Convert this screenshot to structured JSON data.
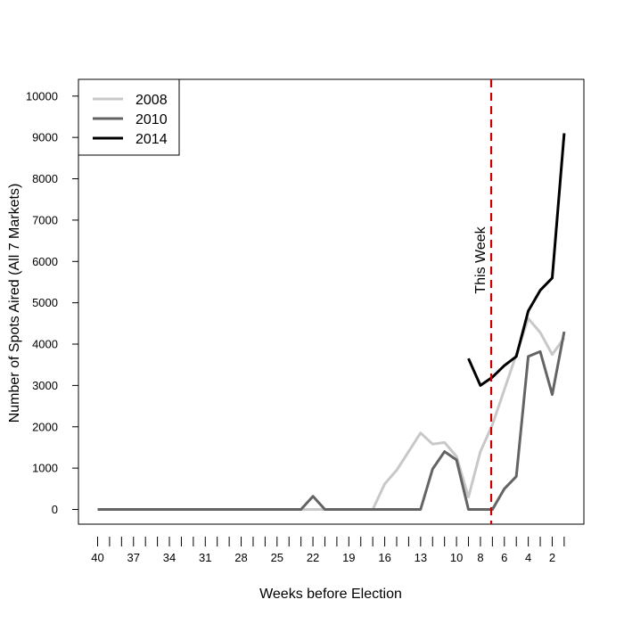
{
  "chart_data": {
    "type": "line",
    "title": "",
    "xlabel": "Weeks before Election",
    "ylabel": "Number of Spots Aired (All 7 Markets)",
    "xlim": [
      41,
      0
    ],
    "ylim": [
      0,
      10000
    ],
    "yticks": [
      0,
      1000,
      2000,
      3000,
      4000,
      5000,
      6000,
      7000,
      8000,
      9000,
      10000
    ],
    "x_weeks": [
      40,
      39,
      38,
      37,
      36,
      35,
      34,
      33,
      32,
      31,
      30,
      29,
      28,
      27,
      26,
      25,
      24,
      23,
      22,
      21,
      20,
      19,
      18,
      17,
      16,
      15,
      14,
      13,
      12,
      11,
      10,
      9,
      8,
      7,
      6,
      5,
      4,
      3,
      2,
      1
    ],
    "xtick_labels": [
      "40",
      "37",
      "34",
      "31",
      "28",
      "25",
      "22",
      "19",
      "16",
      "13",
      "10",
      "8",
      "6",
      "4",
      "2"
    ],
    "xtick_label_weeks": [
      40,
      37,
      34,
      31,
      28,
      25,
      22,
      19,
      16,
      13,
      10,
      8,
      6,
      4,
      2
    ],
    "series": [
      {
        "name": "2008",
        "color": "#c8c8c8",
        "x": [
          40,
          39,
          38,
          37,
          36,
          35,
          34,
          33,
          32,
          31,
          30,
          29,
          28,
          27,
          26,
          25,
          24,
          23,
          22,
          21,
          20,
          19,
          18,
          17,
          16,
          15,
          14,
          13,
          12,
          11,
          10,
          9,
          8,
          7,
          6,
          5,
          4,
          3,
          2,
          1
        ],
        "values": [
          0,
          0,
          0,
          0,
          0,
          0,
          0,
          0,
          0,
          0,
          0,
          0,
          0,
          0,
          0,
          0,
          0,
          0,
          0,
          0,
          0,
          0,
          0,
          0,
          620,
          950,
          1400,
          1850,
          1580,
          1620,
          1280,
          300,
          1400,
          2050,
          2900,
          3750,
          4620,
          4280,
          3750,
          4150
        ]
      },
      {
        "name": "2010",
        "color": "#646464",
        "x": [
          40,
          39,
          38,
          37,
          36,
          35,
          34,
          33,
          32,
          31,
          30,
          29,
          28,
          27,
          26,
          25,
          24,
          23,
          22,
          21,
          20,
          19,
          18,
          17,
          16,
          15,
          14,
          13,
          12,
          11,
          10,
          9,
          8,
          7,
          6,
          5,
          4,
          3,
          2,
          1
        ],
        "values": [
          0,
          0,
          0,
          0,
          0,
          0,
          0,
          0,
          0,
          0,
          0,
          0,
          0,
          0,
          0,
          0,
          0,
          0,
          320,
          0,
          0,
          0,
          0,
          0,
          0,
          0,
          0,
          0,
          980,
          1400,
          1200,
          0,
          0,
          0,
          500,
          800,
          3700,
          3820,
          2780,
          4300
        ]
      },
      {
        "name": "2014",
        "color": "#000000",
        "x": [
          9,
          8,
          7,
          6,
          5,
          4,
          3,
          2,
          1
        ],
        "values": [
          3650,
          3000,
          3200,
          3480,
          3700,
          4800,
          5300,
          5600,
          9100
        ]
      }
    ],
    "vline": {
      "x": 7.1,
      "color": "#cc0000",
      "label": "This Week"
    },
    "legend_position": "top-left",
    "grid": false
  }
}
